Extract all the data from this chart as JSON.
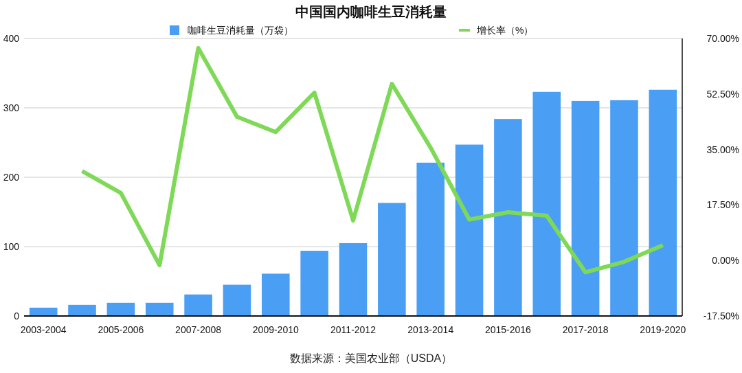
{
  "chart_data": {
    "type": "bar",
    "title": "中国国内咖啡生豆消耗量",
    "categories": [
      "2003-2004",
      null,
      "2005-2006",
      null,
      "2007-2008",
      null,
      "2009-2010",
      null,
      "2011-2012",
      null,
      "2013-2014",
      null,
      "2015-2016",
      null,
      "2017-2018",
      null,
      "2019-2020"
    ],
    "series": [
      {
        "name": "咖啡生豆消耗量（万袋）",
        "color": "#4a9ff5",
        "values": [
          12,
          16,
          19,
          19,
          31,
          45,
          61,
          94,
          105,
          163,
          221,
          247,
          284,
          323,
          310,
          311,
          326
        ]
      },
      {
        "name": "增长率（%）",
        "type": "line",
        "axis": "y2",
        "color": "#7ed957",
        "values": [
          null,
          28.2,
          21.3,
          -1.5,
          67,
          45.3,
          40.5,
          52.9,
          12.6,
          55.7,
          35.6,
          12.9,
          15.2,
          14.1,
          -3.7,
          -0.4,
          4.8
        ]
      }
    ],
    "ylim": [
      0,
      400
    ],
    "yticks": [
      0,
      100,
      200,
      300,
      400
    ],
    "y2lim": [
      -17.5,
      70
    ],
    "y2ticks": [
      {
        "value": -17.5,
        "label": "-17.50%"
      },
      {
        "value": 0,
        "label": "0.00%"
      },
      {
        "value": 17.5,
        "label": "17.50%"
      },
      {
        "value": 35,
        "label": "35.00%"
      },
      {
        "value": 52.5,
        "label": "52.50%"
      },
      {
        "value": 70,
        "label": "70.00%"
      }
    ],
    "grid": "y",
    "legend": "top",
    "line_style": "solid",
    "marker": "none",
    "annotations": [
      "数据来源：美国农业部（USDA）"
    ]
  }
}
